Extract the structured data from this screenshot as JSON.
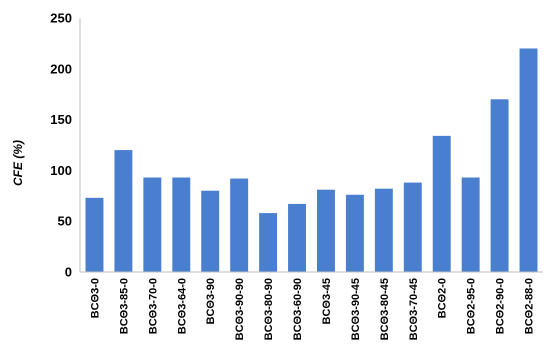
{
  "chart_data": {
    "type": "bar",
    "title": "",
    "xlabel": "",
    "ylabel": "CFE (%)",
    "ylim": [
      0,
      250
    ],
    "yticks": [
      0,
      50,
      100,
      150,
      200,
      250
    ],
    "grid": false,
    "legend": "none",
    "bar_color": "#4a7fd0",
    "categories": [
      "BCΘ3-0",
      "BCΘ3-85-0",
      "BCΘ3-70-0",
      "BCΘ3-64-0",
      "BCΘ3-90",
      "BCΘ3-90-90",
      "BCΘ3-80-90",
      "BCΘ3-60-90",
      "BCΘ3-45",
      "BCΘ3-90-45",
      "BCΘ3-80-45",
      "BCΘ3-70-45",
      "BCΘ2-0",
      "BCΘ2-95-0",
      "BCΘ2-90-0",
      "BCΘ2-88-0"
    ],
    "values": [
      73,
      120,
      93,
      93,
      80,
      92,
      58,
      67,
      81,
      76,
      82,
      88,
      134,
      93,
      170,
      220
    ]
  }
}
